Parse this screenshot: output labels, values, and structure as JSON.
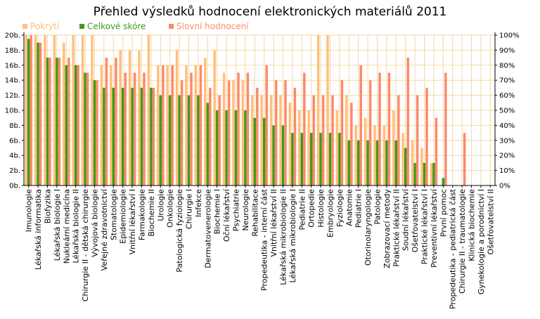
{
  "chart_data": {
    "type": "bar",
    "title": "Přehled výsledků hodnocení elektronických materiálů 2011",
    "legend_position": "top-left",
    "grid": true,
    "colors": {
      "coverage": "#ffc07a",
      "overall": "#3f9a1e",
      "verbal": "#fb8a6a",
      "grid": "#f2d9a8",
      "axis": "#000000"
    },
    "left_axis": {
      "ylim": [
        0,
        20
      ],
      "ticks": [
        "0b.",
        "2b.",
        "4b.",
        "6b.",
        "8b.",
        "10b.",
        "12b.",
        "14b.",
        "16b.",
        "18b.",
        "20b."
      ]
    },
    "right_axis": {
      "ylim": [
        0,
        100
      ],
      "ticks": [
        "0%",
        "10%",
        "20%",
        "30%",
        "40%",
        "50%",
        "60%",
        "70%",
        "80%",
        "90%",
        "100%"
      ]
    },
    "categories": [
      "Imunologie",
      "Lékařská informatika",
      "Biofyzika",
      "Lékařská biologie I",
      "Nukleární medicína",
      "Lékařská biologie II",
      "Chirurgie II - dětská chirurgie",
      "Vývojová biologie",
      "Veřejné zdravotnictví",
      "Stomatologie",
      "Epidemiologie",
      "Vnitřní lékařství I",
      "Farmakologie",
      "Biochemie II",
      "Urologie",
      "Onkologie",
      "Patologická fyziologie",
      "Chirurgie I",
      "Infekce",
      "Dermatovenerologie",
      "Biochemie I",
      "Oční lékařství",
      "Psychiatrie",
      "Neurologie",
      "Rehabilitace",
      "Propedeutika - interní část",
      "Vnitřní lékařství II",
      "Lékařská mikrobiologie II",
      "Lékařská mikrobiologie I",
      "Pediatrie II",
      "Ortopedie",
      "Histologie",
      "Embryologie",
      "Fyziologie",
      "Anatomie",
      "Pediatrie I",
      "Otorinolaryngologie",
      "Patologie",
      "Zobrazovací metody",
      "Praktické lékařství II",
      "Soudní lékařství",
      "Ošetřovatelství I",
      "Praktické lékařství I",
      "Preventivní lékařství",
      "První pomoc",
      "Propedeutika - pediatrická část",
      "Chirurgie II - traumatologie",
      "Klinická biochemie",
      "Gynekologie a porodnictví I",
      "Ošetřovatelství II"
    ],
    "series": [
      {
        "name": "Pokrytí",
        "axis": "right",
        "values": [
          100,
          100,
          100,
          100,
          95,
          100,
          100,
          100,
          80,
          80,
          90,
          90,
          90,
          100,
          80,
          80,
          90,
          80,
          80,
          85,
          90,
          75,
          70,
          70,
          60,
          60,
          60,
          60,
          55,
          50,
          50,
          100,
          100,
          50,
          60,
          40,
          45,
          40,
          40,
          50,
          35,
          30,
          25,
          15,
          0,
          0,
          0,
          0,
          0,
          0
        ]
      },
      {
        "name": "Celkové skóre",
        "axis": "left",
        "values": [
          19.5,
          19,
          17,
          17,
          16,
          16,
          15,
          14,
          13,
          13,
          13,
          13,
          13,
          13,
          12,
          12,
          12,
          12,
          12,
          11,
          10,
          10,
          10,
          10,
          9,
          9,
          8,
          8,
          7,
          7,
          7,
          7,
          7,
          7,
          6,
          6,
          6,
          6,
          6,
          6,
          5,
          3,
          3,
          3,
          1,
          0,
          0,
          0,
          0,
          0
        ]
      },
      {
        "name": "Slovní hodnocení",
        "axis": "right",
        "values": [
          100,
          95,
          85,
          85,
          85,
          80,
          75,
          70,
          85,
          85,
          75,
          75,
          75,
          65,
          80,
          80,
          70,
          75,
          80,
          65,
          60,
          70,
          75,
          75,
          65,
          80,
          70,
          70,
          65,
          75,
          60,
          60,
          60,
          70,
          55,
          80,
          70,
          75,
          75,
          60,
          85,
          60,
          65,
          45,
          75,
          0,
          35,
          0,
          0,
          0
        ]
      }
    ]
  }
}
